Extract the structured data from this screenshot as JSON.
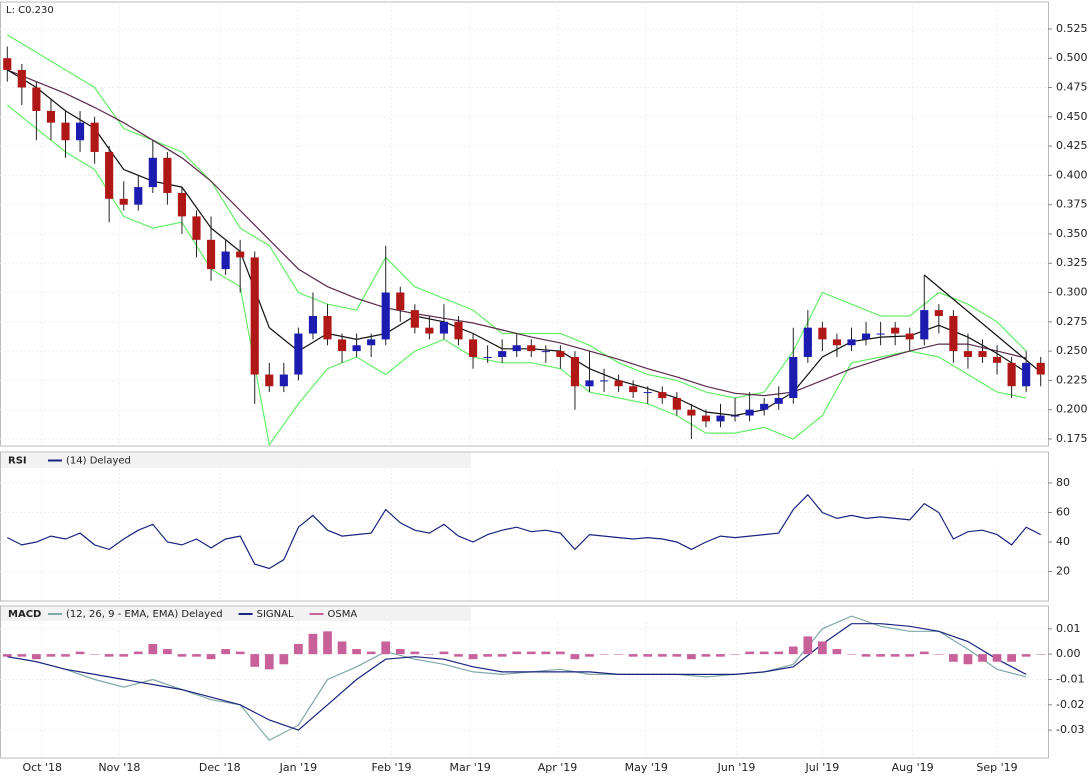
{
  "chart_data": [
    {
      "type": "candlestick",
      "label": "L: C0.230",
      "up_color": "#1c1cb0",
      "down_color": "#b01818",
      "xlim": [
        -0.5,
        71.5
      ],
      "open": [
        0.5,
        0.49,
        0.475,
        0.455,
        0.445,
        0.43,
        0.445,
        0.42,
        0.38,
        0.375,
        0.39,
        0.415,
        0.385,
        0.365,
        0.345,
        0.32,
        0.335,
        0.33,
        0.23,
        0.22,
        0.23,
        0.265,
        0.28,
        0.26,
        0.25,
        0.255,
        0.26,
        0.3,
        0.285,
        0.27,
        0.265,
        0.275,
        0.26,
        0.245,
        0.245,
        0.25,
        0.255,
        0.25,
        0.25,
        0.245,
        0.22,
        0.225,
        0.225,
        0.22,
        0.215,
        0.215,
        0.21,
        0.2,
        0.195,
        0.19,
        0.195,
        0.195,
        0.2,
        0.205,
        0.21,
        0.245,
        0.27,
        0.26,
        0.255,
        0.26,
        0.265,
        0.27,
        0.265,
        0.26,
        0.285,
        0.28,
        0.25,
        0.25,
        0.245,
        0.24,
        0.22,
        0.24
      ],
      "high": [
        0.51,
        0.495,
        0.48,
        0.465,
        0.455,
        0.455,
        0.45,
        0.425,
        0.395,
        0.4,
        0.43,
        0.42,
        0.39,
        0.37,
        0.365,
        0.345,
        0.345,
        0.335,
        0.24,
        0.24,
        0.27,
        0.3,
        0.29,
        0.265,
        0.265,
        0.265,
        0.34,
        0.305,
        0.29,
        0.28,
        0.29,
        0.28,
        0.265,
        0.255,
        0.26,
        0.265,
        0.26,
        0.255,
        0.255,
        0.25,
        0.25,
        0.235,
        0.23,
        0.225,
        0.22,
        0.22,
        0.215,
        0.205,
        0.2,
        0.205,
        0.21,
        0.215,
        0.21,
        0.22,
        0.27,
        0.285,
        0.275,
        0.265,
        0.27,
        0.275,
        0.275,
        0.275,
        0.27,
        0.315,
        0.29,
        0.285,
        0.265,
        0.26,
        0.255,
        0.245,
        0.25,
        0.245
      ],
      "low": [
        0.48,
        0.46,
        0.43,
        0.43,
        0.415,
        0.42,
        0.41,
        0.36,
        0.37,
        0.37,
        0.385,
        0.375,
        0.35,
        0.33,
        0.31,
        0.315,
        0.3,
        0.205,
        0.215,
        0.215,
        0.225,
        0.26,
        0.255,
        0.24,
        0.245,
        0.245,
        0.255,
        0.275,
        0.265,
        0.26,
        0.26,
        0.255,
        0.235,
        0.24,
        0.24,
        0.245,
        0.245,
        0.24,
        0.235,
        0.2,
        0.215,
        0.215,
        0.215,
        0.21,
        0.205,
        0.205,
        0.195,
        0.175,
        0.185,
        0.185,
        0.19,
        0.19,
        0.195,
        0.2,
        0.205,
        0.24,
        0.25,
        0.245,
        0.25,
        0.255,
        0.255,
        0.255,
        0.25,
        0.255,
        0.265,
        0.24,
        0.235,
        0.24,
        0.23,
        0.21,
        0.215,
        0.22
      ],
      "close": [
        0.49,
        0.475,
        0.455,
        0.445,
        0.43,
        0.445,
        0.42,
        0.38,
        0.375,
        0.39,
        0.415,
        0.385,
        0.365,
        0.345,
        0.32,
        0.335,
        0.33,
        0.23,
        0.22,
        0.23,
        0.265,
        0.28,
        0.26,
        0.25,
        0.255,
        0.26,
        0.3,
        0.285,
        0.27,
        0.265,
        0.275,
        0.26,
        0.245,
        0.245,
        0.25,
        0.255,
        0.25,
        0.25,
        0.245,
        0.22,
        0.225,
        0.225,
        0.22,
        0.215,
        0.215,
        0.21,
        0.2,
        0.195,
        0.19,
        0.195,
        0.195,
        0.2,
        0.205,
        0.21,
        0.245,
        0.27,
        0.26,
        0.255,
        0.26,
        0.265,
        0.265,
        0.265,
        0.26,
        0.285,
        0.28,
        0.25,
        0.245,
        0.245,
        0.24,
        0.22,
        0.24,
        0.23
      ],
      "overlays": [
        {
          "color": "#66ee66",
          "x": [
            0,
            2,
            4,
            6,
            8,
            10,
            12,
            14,
            16,
            18,
            20,
            22,
            24,
            26,
            28,
            30,
            32,
            34,
            36,
            38,
            40,
            42,
            44,
            46,
            48,
            50,
            52,
            54,
            56,
            58,
            60,
            62,
            64,
            66,
            68,
            70
          ],
          "values": [
            0.52,
            0.505,
            0.49,
            0.475,
            0.44,
            0.43,
            0.42,
            0.395,
            0.355,
            0.34,
            0.3,
            0.29,
            0.285,
            0.33,
            0.305,
            0.295,
            0.285,
            0.265,
            0.265,
            0.265,
            0.255,
            0.24,
            0.23,
            0.225,
            0.215,
            0.21,
            0.215,
            0.25,
            0.3,
            0.29,
            0.28,
            0.28,
            0.3,
            0.29,
            0.275,
            0.25
          ]
        },
        {
          "color": "#66ee66",
          "x": [
            0,
            2,
            4,
            6,
            8,
            10,
            12,
            14,
            16,
            18,
            20,
            22,
            24,
            26,
            28,
            30,
            32,
            34,
            36,
            38,
            40,
            42,
            44,
            46,
            48,
            50,
            52,
            54,
            56,
            58,
            60,
            62,
            64,
            66,
            68,
            70
          ],
          "values": [
            0.46,
            0.44,
            0.42,
            0.405,
            0.365,
            0.355,
            0.36,
            0.32,
            0.305,
            0.17,
            0.205,
            0.235,
            0.245,
            0.23,
            0.25,
            0.26,
            0.245,
            0.24,
            0.24,
            0.235,
            0.215,
            0.21,
            0.205,
            0.195,
            0.18,
            0.18,
            0.185,
            0.175,
            0.195,
            0.24,
            0.245,
            0.25,
            0.245,
            0.23,
            0.215,
            0.21
          ]
        },
        {
          "color": "#5a2a4a",
          "x": [
            0,
            2,
            4,
            6,
            8,
            10,
            12,
            14,
            16,
            18,
            20,
            22,
            24,
            26,
            28,
            30,
            32,
            34,
            36,
            38,
            40,
            42,
            44,
            46,
            48,
            50,
            52,
            54,
            56,
            58,
            60,
            62,
            64,
            66,
            68,
            70
          ],
          "values": [
            0.49,
            0.48,
            0.47,
            0.458,
            0.445,
            0.43,
            0.415,
            0.395,
            0.37,
            0.345,
            0.32,
            0.305,
            0.295,
            0.287,
            0.282,
            0.278,
            0.274,
            0.268,
            0.262,
            0.257,
            0.25,
            0.243,
            0.235,
            0.228,
            0.22,
            0.214,
            0.212,
            0.215,
            0.225,
            0.235,
            0.243,
            0.25,
            0.256,
            0.256,
            0.25,
            0.244
          ]
        },
        {
          "color": "#111111",
          "x": [
            0,
            2,
            4,
            6,
            8,
            10,
            12,
            14,
            16,
            18,
            20,
            22,
            24,
            26,
            28,
            30,
            32,
            34,
            36,
            38,
            40,
            42,
            44,
            46,
            48,
            50,
            52,
            54,
            56,
            58,
            60,
            62,
            64,
            66,
            68,
            70
          ],
          "values": [
            0.49,
            0.475,
            0.455,
            0.44,
            0.405,
            0.395,
            0.39,
            0.355,
            0.335,
            0.27,
            0.25,
            0.265,
            0.26,
            0.265,
            0.28,
            0.275,
            0.265,
            0.252,
            0.252,
            0.25,
            0.235,
            0.225,
            0.218,
            0.21,
            0.198,
            0.195,
            0.2,
            0.215,
            0.245,
            0.258,
            0.262,
            0.263,
            0.272,
            0.262,
            0.248,
            0.232
          ]
        },
        {
          "color": "#111111",
          "x": [
            63,
            71
          ],
          "values": [
            0.315,
            0.232
          ]
        }
      ],
      "ylim": [
        0.169,
        0.548
      ],
      "yticks": [
        0.525,
        {
          "value": 0.5,
          "label": "0.500"
        },
        0.475,
        {
          "value": 0.45,
          "label": "0.450"
        },
        0.425,
        {
          "value": 0.4,
          "label": "0.400"
        },
        0.375,
        {
          "value": 0.35,
          "label": "0.350"
        },
        0.325,
        {
          "value": 0.3,
          "label": "0.300"
        },
        0.275,
        {
          "value": 0.25,
          "label": "0.250"
        },
        0.225,
        {
          "value": 0.2,
          "label": "0.200"
        },
        0.175
      ]
    },
    {
      "type": "line",
      "title": "RSI",
      "series": [
        {
          "name": "(14) Delayed",
          "color": "#1a237e",
          "values": [
            43,
            38,
            40,
            44,
            42,
            46,
            38,
            35,
            42,
            48,
            52,
            40,
            38,
            42,
            36,
            42,
            44,
            25,
            22,
            28,
            50,
            58,
            48,
            44,
            45,
            46,
            62,
            53,
            48,
            46,
            52,
            44,
            40,
            45,
            48,
            50,
            47,
            48,
            46,
            35,
            45,
            44,
            43,
            42,
            43,
            42,
            40,
            35,
            40,
            44,
            43,
            44,
            45,
            46,
            62,
            72,
            60,
            56,
            58,
            56,
            57,
            56,
            55,
            66,
            60,
            42,
            47,
            48,
            45,
            38,
            50,
            45
          ]
        }
      ],
      "ylim": [
        0,
        101
      ],
      "yticks": [
        80,
        60,
        40,
        20
      ]
    },
    {
      "type": "macd",
      "title": "MACD",
      "series": [
        {
          "name": "(12, 26, 9 - EMA, EMA) Delayed",
          "color": "#7fa8a8",
          "x": [
            0,
            2,
            4,
            6,
            8,
            10,
            12,
            14,
            16,
            18,
            20,
            22,
            24,
            26,
            28,
            30,
            32,
            34,
            36,
            38,
            40,
            42,
            44,
            46,
            48,
            50,
            52,
            54,
            56,
            58,
            60,
            62,
            64,
            66,
            68,
            70
          ],
          "values": [
            -0.001,
            -0.003,
            -0.006,
            -0.01,
            -0.013,
            -0.01,
            -0.014,
            -0.018,
            -0.02,
            -0.034,
            -0.028,
            -0.01,
            -0.005,
            0.001,
            -0.002,
            -0.004,
            -0.007,
            -0.008,
            -0.007,
            -0.006,
            -0.008,
            -0.008,
            -0.008,
            -0.008,
            -0.009,
            -0.008,
            -0.007,
            -0.004,
            0.01,
            0.015,
            0.011,
            0.009,
            0.009,
            0.002,
            -0.006,
            -0.009
          ]
        },
        {
          "name": "SIGNAL",
          "color": "#1a237e",
          "x": [
            0,
            2,
            4,
            6,
            8,
            10,
            12,
            14,
            16,
            18,
            20,
            22,
            24,
            26,
            28,
            30,
            32,
            34,
            36,
            38,
            40,
            42,
            44,
            46,
            48,
            50,
            52,
            54,
            56,
            58,
            60,
            62,
            64,
            66,
            68,
            70
          ],
          "values": [
            -0.001,
            -0.003,
            -0.006,
            -0.008,
            -0.01,
            -0.012,
            -0.014,
            -0.017,
            -0.02,
            -0.026,
            -0.03,
            -0.02,
            -0.01,
            -0.002,
            -0.001,
            -0.002,
            -0.005,
            -0.007,
            -0.007,
            -0.007,
            -0.007,
            -0.008,
            -0.008,
            -0.008,
            -0.008,
            -0.008,
            -0.007,
            -0.005,
            0.004,
            0.012,
            0.012,
            0.011,
            0.009,
            0.005,
            -0.002,
            -0.008
          ]
        },
        {
          "name": "OSMA",
          "color": "#c8609a",
          "values": [
            -0.001,
            -0.001,
            -0.002,
            -0.001,
            -0.001,
            0.001,
            0.0,
            -0.001,
            -0.001,
            0.001,
            0.004,
            0.002,
            -0.001,
            -0.001,
            -0.002,
            0.002,
            0.001,
            -0.005,
            -0.006,
            -0.004,
            0.004,
            0.008,
            0.009,
            0.005,
            0.002,
            0.001,
            0.005,
            0.002,
            0.001,
            0.0,
            0.001,
            -0.001,
            -0.002,
            -0.001,
            -0.001,
            0.001,
            0.001,
            0.001,
            0.001,
            -0.002,
            -0.001,
            0.0,
            0.0,
            -0.001,
            -0.001,
            -0.001,
            -0.001,
            -0.002,
            -0.001,
            -0.001,
            0.0,
            0.001,
            0.001,
            0.001,
            0.003,
            0.007,
            0.005,
            0.002,
            0.0,
            -0.001,
            -0.001,
            -0.001,
            -0.001,
            0.001,
            0.0,
            -0.003,
            -0.004,
            -0.003,
            -0.003,
            -0.003,
            -0.001,
            0.0
          ]
        }
      ],
      "ylim": [
        -0.041,
        0.019
      ],
      "yticks": [
        0.01,
        {
          "value": 0,
          "label": "0.00"
        },
        -0.01,
        -0.02,
        -0.03
      ],
      "xticks": [
        {
          "value": 2.4,
          "label": "Oct '18"
        },
        {
          "value": 7.7,
          "label": "Nov '18"
        },
        {
          "value": 14.6,
          "label": "Dec '18"
        },
        {
          "value": 20,
          "label": "Jan '19"
        },
        {
          "value": 26.4,
          "label": "Feb '19"
        },
        {
          "value": 31.8,
          "label": "Mar '19"
        },
        {
          "value": 37.8,
          "label": "Apr '19"
        },
        {
          "value": 43.9,
          "label": "May '19"
        },
        {
          "value": 50.1,
          "label": "Jun '19"
        },
        {
          "value": 56,
          "label": "Jul '19"
        },
        {
          "value": 62.2,
          "label": "Aug '19"
        },
        {
          "value": 68,
          "label": "Sep '19"
        }
      ]
    }
  ]
}
